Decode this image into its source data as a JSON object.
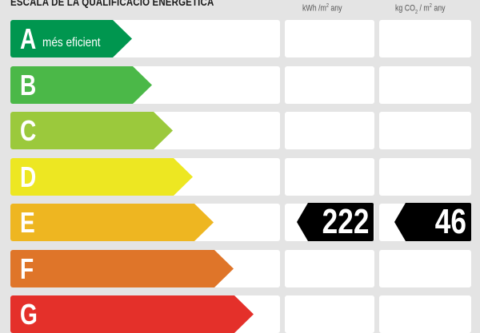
{
  "header": {
    "title": "ESCALA DE LA QUALIFICACIÓ ENERGÈTICA",
    "unit_energy": {
      "pre": "kWh /m",
      "sup": "2",
      "post": " any"
    },
    "unit_co2": {
      "pre": "kg CO",
      "sub": "2",
      "mid": " / m",
      "sup": "2",
      "post": " any"
    }
  },
  "rows": [
    {
      "letter": "A",
      "label": "més eficient",
      "color": "#00964f"
    },
    {
      "letter": "B",
      "label": "",
      "color": "#4bb848"
    },
    {
      "letter": "C",
      "label": "",
      "color": "#9bc93c"
    },
    {
      "letter": "D",
      "label": "",
      "color": "#ede722"
    },
    {
      "letter": "E",
      "label": "",
      "color": "#eeb621"
    },
    {
      "letter": "F",
      "label": "",
      "color": "#df7529"
    },
    {
      "letter": "G",
      "label": "",
      "color": "#e4302a"
    }
  ],
  "rating": {
    "class": "E",
    "energy_value": "222",
    "co2_value": "46"
  }
}
